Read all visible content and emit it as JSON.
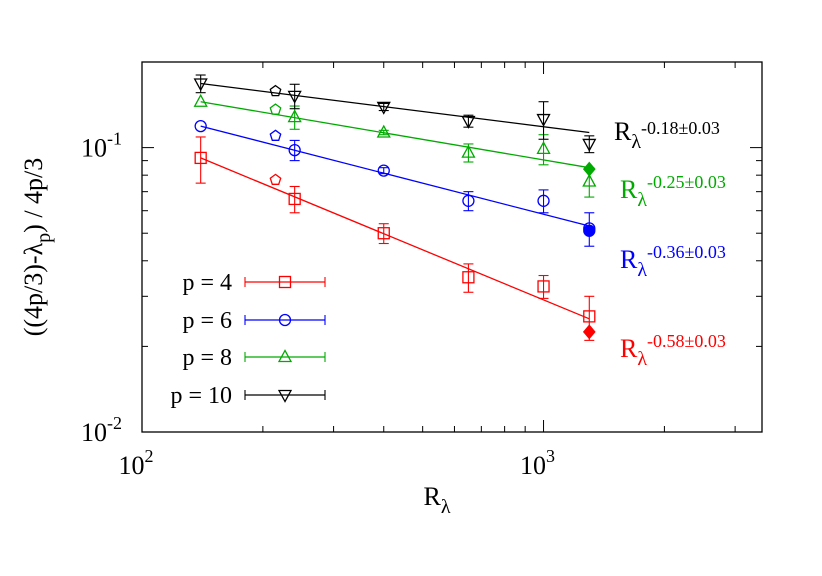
{
  "chart_data": {
    "type": "scatter",
    "x_scale": "log",
    "y_scale": "log",
    "xlim": [
      100,
      3500
    ],
    "ylim": [
      0.01,
      0.2
    ],
    "xlabel": {
      "base": "R",
      "sub": "λ"
    },
    "ylabel": "((4p/3)-λ",
    "ylabel_sub": "p",
    "ylabel_tail": ") / 4p/3",
    "x_ticks": [
      {
        "value": 100,
        "base": "10",
        "exp": "2"
      },
      {
        "value": 1000,
        "base": "10",
        "exp": "3"
      }
    ],
    "y_ticks": [
      {
        "value": 0.01,
        "base": "10",
        "exp": "-2"
      },
      {
        "value": 0.1,
        "base": "10",
        "exp": "-1"
      }
    ],
    "legend_placement": "bottom-left",
    "series": [
      {
        "name": "p = 4",
        "color": "#ff0000",
        "marker": "square",
        "points": [
          {
            "x": 140,
            "y": 0.092,
            "err": 0.017
          },
          {
            "x": 240,
            "y": 0.066,
            "err": 0.007
          },
          {
            "x": 400,
            "y": 0.05,
            "err": 0.004
          },
          {
            "x": 650,
            "y": 0.035,
            "err": 0.004
          },
          {
            "x": 1000,
            "y": 0.0325,
            "err": 0.003
          },
          {
            "x": 1300,
            "y": 0.0255,
            "err": 0.0045
          }
        ],
        "extra_marker": {
          "shape": "pentagon",
          "x": 215,
          "y": 0.077
        },
        "filled_marker": {
          "shape": "diamond",
          "x": 1300,
          "y": 0.0225
        },
        "fit": {
          "x1": 140,
          "y1": 0.092,
          "x2": 1300,
          "y2": 0.025
        },
        "fit_label": {
          "base": "R",
          "sub": "λ",
          "exp": "-0.58±0.03"
        }
      },
      {
        "name": "p = 6",
        "color": "#0000ff",
        "marker": "circle",
        "points": [
          {
            "x": 140,
            "y": 0.119,
            "err": 0.0
          },
          {
            "x": 240,
            "y": 0.098,
            "err": 0.008
          },
          {
            "x": 400,
            "y": 0.083,
            "err": 0.002
          },
          {
            "x": 650,
            "y": 0.065,
            "err": 0.005
          },
          {
            "x": 1000,
            "y": 0.065,
            "err": 0.006
          },
          {
            "x": 1300,
            "y": 0.052,
            "err": 0.007
          }
        ],
        "extra_marker": {
          "shape": "pentagon",
          "x": 215,
          "y": 0.11
        },
        "filled_marker": {
          "shape": "circle",
          "x": 1300,
          "y": 0.051
        },
        "fit": {
          "x1": 140,
          "y1": 0.119,
          "x2": 1300,
          "y2": 0.053
        },
        "fit_label": {
          "base": "R",
          "sub": "λ",
          "exp": "-0.36±0.03"
        }
      },
      {
        "name": "p = 8",
        "color": "#00aa00",
        "marker": "triangle-up",
        "points": [
          {
            "x": 140,
            "y": 0.145,
            "err": 0.0
          },
          {
            "x": 240,
            "y": 0.128,
            "err": 0.012
          },
          {
            "x": 400,
            "y": 0.113,
            "err": 0.002
          },
          {
            "x": 650,
            "y": 0.096,
            "err": 0.007
          },
          {
            "x": 1000,
            "y": 0.099,
            "err": 0.012
          },
          {
            "x": 1300,
            "y": 0.076,
            "err": 0.009
          }
        ],
        "extra_marker": {
          "shape": "pentagon",
          "x": 215,
          "y": 0.136
        },
        "filled_marker": {
          "shape": "diamond",
          "x": 1300,
          "y": 0.084
        },
        "fit": {
          "x1": 140,
          "y1": 0.145,
          "x2": 1300,
          "y2": 0.085
        },
        "fit_label": {
          "base": "R",
          "sub": "λ",
          "exp": "-0.25±0.03"
        }
      },
      {
        "name": "p = 10",
        "color": "#000000",
        "marker": "triangle-down",
        "points": [
          {
            "x": 140,
            "y": 0.168,
            "err": 0.012
          },
          {
            "x": 240,
            "y": 0.152,
            "err": 0.015
          },
          {
            "x": 400,
            "y": 0.139,
            "err": 0.004
          },
          {
            "x": 650,
            "y": 0.124,
            "err": 0.006
          },
          {
            "x": 1000,
            "y": 0.126,
            "err": 0.019
          },
          {
            "x": 1300,
            "y": 0.103,
            "err": 0.007
          }
        ],
        "extra_marker": {
          "shape": "pentagon",
          "x": 215,
          "y": 0.158
        },
        "fit": {
          "x1": 140,
          "y1": 0.168,
          "x2": 1300,
          "y2": 0.113
        },
        "fit_label": {
          "base": "R",
          "sub": "λ",
          "exp": "-0.18±0.03"
        }
      }
    ]
  }
}
